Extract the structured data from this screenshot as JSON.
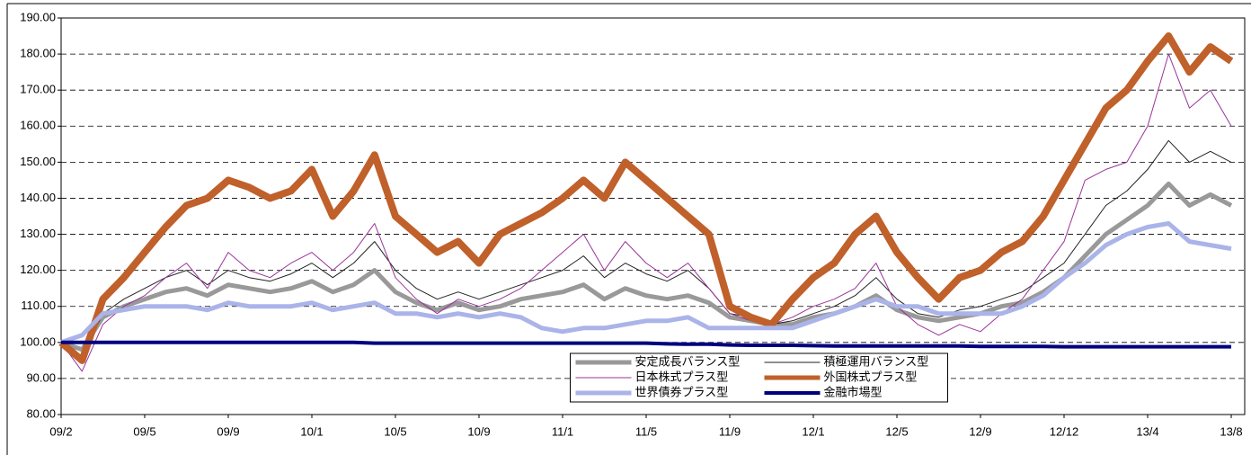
{
  "chart_data": {
    "type": "line",
    "categories": [
      "09/2",
      null,
      null,
      null,
      "09/5",
      null,
      null,
      null,
      "09/9",
      null,
      null,
      null,
      "10/1",
      null,
      null,
      null,
      "10/5",
      null,
      null,
      null,
      "10/9",
      null,
      null,
      null,
      "11/1",
      null,
      null,
      null,
      "11/5",
      null,
      null,
      null,
      "11/9",
      null,
      null,
      null,
      "12/1",
      null,
      null,
      null,
      "12/5",
      null,
      null,
      null,
      "12/9",
      null,
      null,
      null,
      "12/12",
      null,
      null,
      null,
      "13/4",
      null,
      null,
      null,
      "13/8"
    ],
    "series": [
      {
        "name": "安定成長バランス型",
        "color": "#999999",
        "width": 5,
        "values": [
          100,
          98,
          107,
          110,
          112,
          114,
          115,
          113,
          116,
          115,
          114,
          115,
          117,
          114,
          116,
          120,
          114,
          111,
          109,
          111,
          109,
          110,
          112,
          113,
          114,
          116,
          112,
          115,
          113,
          112,
          113,
          111,
          107,
          106,
          105,
          105,
          107,
          108,
          110,
          113,
          109,
          107,
          106,
          107,
          108,
          110,
          111,
          114,
          118,
          124,
          130,
          134,
          138,
          144,
          138,
          141,
          138
        ]
      },
      {
        "name": "積極運用バランス型",
        "color": "#222222",
        "width": 1,
        "values": [
          100,
          96,
          108,
          112,
          115,
          118,
          120,
          116,
          120,
          118,
          117,
          119,
          122,
          118,
          122,
          128,
          120,
          115,
          112,
          114,
          112,
          114,
          116,
          118,
          120,
          124,
          118,
          122,
          119,
          117,
          120,
          115,
          108,
          107,
          105,
          106,
          108,
          110,
          113,
          118,
          112,
          108,
          107,
          109,
          110,
          112,
          114,
          118,
          122,
          130,
          138,
          142,
          148,
          156,
          150,
          153,
          150
        ]
      },
      {
        "name": "日本株式プラス型",
        "color": "#993399",
        "width": 1,
        "values": [
          100,
          92,
          105,
          110,
          113,
          118,
          122,
          115,
          125,
          120,
          118,
          122,
          125,
          120,
          125,
          133,
          118,
          112,
          108,
          112,
          110,
          112,
          115,
          120,
          125,
          130,
          120,
          128,
          122,
          118,
          122,
          115,
          108,
          106,
          105,
          107,
          110,
          112,
          115,
          122,
          110,
          105,
          102,
          105,
          103,
          108,
          112,
          120,
          128,
          145,
          148,
          150,
          160,
          180,
          165,
          170,
          160
        ]
      },
      {
        "name": "外国株式プラス型",
        "color": "#c0602a",
        "width": 8,
        "values": [
          100,
          95,
          112,
          118,
          125,
          132,
          138,
          140,
          145,
          143,
          140,
          142,
          148,
          135,
          142,
          152,
          135,
          130,
          125,
          128,
          122,
          130,
          133,
          136,
          140,
          145,
          140,
          150,
          145,
          140,
          135,
          130,
          110,
          107,
          105,
          112,
          118,
          122,
          130,
          135,
          125,
          118,
          112,
          118,
          120,
          125,
          128,
          135,
          145,
          155,
          165,
          170,
          178,
          185,
          175,
          182,
          178
        ]
      },
      {
        "name": "世界債券プラス型",
        "color": "#aab4e8",
        "width": 5,
        "values": [
          100,
          102,
          108,
          109,
          110,
          110,
          110,
          109,
          111,
          110,
          110,
          110,
          111,
          109,
          110,
          111,
          108,
          108,
          107,
          108,
          107,
          108,
          107,
          104,
          103,
          104,
          104,
          105,
          106,
          106,
          107,
          104,
          104,
          104,
          104,
          104,
          106,
          108,
          110,
          112,
          110,
          110,
          108,
          108,
          108,
          108,
          110,
          113,
          118,
          122,
          127,
          130,
          132,
          133,
          128,
          127,
          126
        ]
      },
      {
        "name": "金融市場型",
        "color": "#000080",
        "width": 4,
        "values": [
          100,
          100,
          100,
          100,
          100,
          100,
          100,
          100,
          100,
          100,
          100,
          100,
          100,
          100,
          100,
          99.8,
          99.8,
          99.8,
          99.8,
          99.8,
          99.8,
          99.8,
          99.8,
          99.8,
          99.8,
          99.8,
          99.8,
          99.8,
          99.8,
          99.6,
          99.5,
          99.5,
          99.3,
          99.2,
          99.2,
          99.2,
          99.1,
          99,
          99,
          99,
          99,
          99,
          99,
          99,
          98.9,
          98.9,
          98.9,
          98.9,
          98.8,
          98.8,
          98.8,
          98.8,
          98.8,
          98.8,
          98.8,
          98.8,
          98.8
        ]
      }
    ],
    "ylim": [
      80,
      190
    ],
    "yticks": [
      {
        "value": 80,
        "label": "80.00"
      },
      {
        "value": 90,
        "label": "90.00"
      },
      {
        "value": 100,
        "label": "100.00"
      },
      {
        "value": 110,
        "label": "110.00"
      },
      {
        "value": 120,
        "label": "120.00"
      },
      {
        "value": 130,
        "label": "130.00"
      },
      {
        "value": 140,
        "label": "140.00"
      },
      {
        "value": 150,
        "label": "150.00"
      },
      {
        "value": 160,
        "label": "160.00"
      },
      {
        "value": 170,
        "label": "170.00"
      },
      {
        "value": 180,
        "label": "180.00"
      },
      {
        "value": 190,
        "label": "190.00"
      }
    ],
    "grid": true,
    "legend": "bottom-center"
  }
}
